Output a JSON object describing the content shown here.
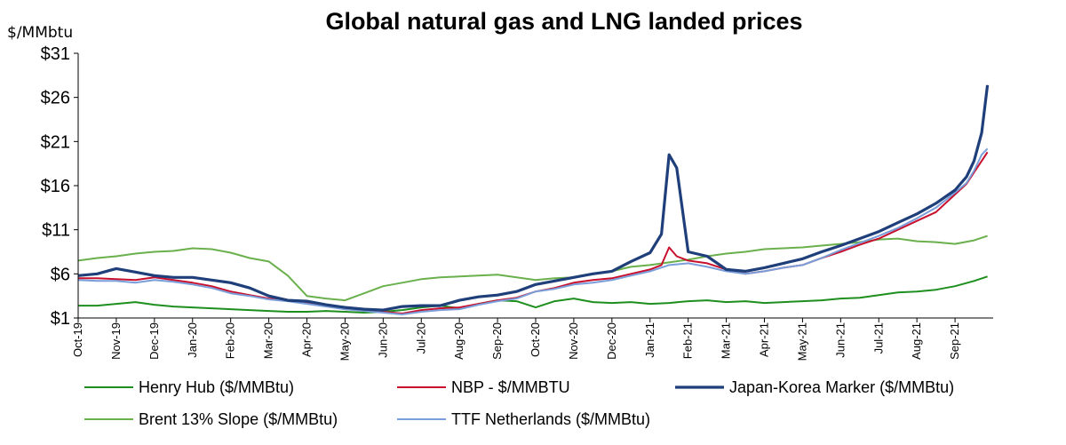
{
  "chart_data": {
    "type": "line",
    "title": "Global natural gas and LNG landed prices",
    "ylabel": "$/MMbtu",
    "xlabel": "",
    "ylim": [
      1,
      31
    ],
    "yticks": [
      "$1",
      "$6",
      "$11",
      "$16",
      "$21",
      "$26",
      "$31"
    ],
    "ytick_values": [
      1,
      6,
      11,
      16,
      21,
      26,
      31
    ],
    "xticks": [
      "Oct-19",
      "Nov-19",
      "Dec-19",
      "Jan-20",
      "Feb-20",
      "Mar-20",
      "Apr-20",
      "May-20",
      "Jun-20",
      "Jul-20",
      "Aug-20",
      "Sep-20",
      "Oct-20",
      "Nov-20",
      "Dec-20",
      "Jan-21",
      "Feb-21",
      "Mar-21",
      "Apr-21",
      "May-21",
      "Jun-21",
      "Jul-21",
      "Aug-21",
      "Sep-21"
    ],
    "grid": false,
    "legend_position": "bottom",
    "series": [
      {
        "name": "Henry Hub ($/MMBtu)",
        "color": "#1e8f1e",
        "x": [
          0,
          0.5,
          1,
          1.5,
          2,
          2.5,
          3,
          3.5,
          4,
          4.5,
          5,
          5.5,
          6,
          6.5,
          7,
          7.5,
          8,
          8.5,
          9,
          9.5,
          10,
          10.5,
          11,
          11.5,
          12,
          12.5,
          13,
          13.5,
          14,
          14.5,
          15,
          15.5,
          16,
          16.5,
          17,
          17.5,
          18,
          18.5,
          19,
          19.5,
          20,
          20.5,
          21,
          21.5,
          22,
          22.5,
          23,
          23.5,
          23.85
        ],
        "values": [
          2.4,
          2.4,
          2.6,
          2.8,
          2.5,
          2.3,
          2.2,
          2.1,
          2.0,
          1.9,
          1.8,
          1.7,
          1.7,
          1.8,
          1.7,
          1.6,
          1.7,
          1.9,
          2.2,
          2.4,
          2.1,
          2.6,
          3.0,
          2.9,
          2.2,
          2.9,
          3.2,
          2.8,
          2.7,
          2.8,
          2.6,
          2.7,
          2.9,
          3.0,
          2.8,
          2.9,
          2.7,
          2.8,
          2.9,
          3.0,
          3.2,
          3.3,
          3.6,
          3.9,
          4.0,
          4.2,
          4.6,
          5.2,
          5.7
        ]
      },
      {
        "name": "NBP - $/MMBTU",
        "color": "#c8102e",
        "x": [
          0,
          0.5,
          1,
          1.5,
          2,
          2.5,
          3,
          3.5,
          4,
          4.5,
          5,
          5.5,
          6,
          6.5,
          7,
          7.5,
          8,
          8.5,
          9,
          9.5,
          10,
          10.5,
          11,
          11.5,
          12,
          12.5,
          13,
          13.5,
          14,
          14.5,
          15,
          15.3,
          15.5,
          15.7,
          16,
          16.5,
          17,
          17.5,
          18,
          18.5,
          19,
          19.5,
          20,
          20.5,
          21,
          21.5,
          22,
          22.5,
          23,
          23.3,
          23.5,
          23.7,
          23.85
        ],
        "values": [
          5.5,
          5.5,
          5.4,
          5.3,
          5.6,
          5.3,
          5.0,
          4.6,
          4.0,
          3.6,
          3.2,
          3.0,
          2.7,
          2.4,
          2.0,
          1.9,
          1.7,
          1.5,
          1.9,
          2.1,
          2.2,
          2.6,
          3.0,
          3.3,
          4.0,
          4.4,
          5.0,
          5.3,
          5.5,
          6.0,
          6.5,
          7.0,
          9.0,
          8.0,
          7.5,
          7.2,
          6.5,
          6.0,
          6.3,
          6.7,
          7.0,
          7.8,
          8.5,
          9.3,
          10.0,
          11.0,
          12.0,
          13.0,
          15.0,
          16.2,
          17.5,
          18.8,
          19.8
        ]
      },
      {
        "name": "Japan-Korea Marker ($/MMBtu)",
        "color": "#1f3f7a",
        "x": [
          0,
          0.5,
          1,
          1.5,
          2,
          2.5,
          3,
          3.5,
          4,
          4.5,
          5,
          5.5,
          6,
          6.5,
          7,
          7.5,
          8,
          8.5,
          9,
          9.5,
          10,
          10.5,
          11,
          11.5,
          12,
          12.5,
          13,
          13.5,
          14,
          14.5,
          15,
          15.3,
          15.5,
          15.7,
          16,
          16.5,
          17,
          17.5,
          18,
          18.5,
          19,
          19.5,
          20,
          20.5,
          21,
          21.5,
          22,
          22.5,
          23,
          23.3,
          23.5,
          23.7,
          23.85
        ],
        "values": [
          5.8,
          6.0,
          6.6,
          6.2,
          5.8,
          5.6,
          5.6,
          5.3,
          5.0,
          4.4,
          3.5,
          3.0,
          2.9,
          2.5,
          2.2,
          2.0,
          1.9,
          2.3,
          2.4,
          2.4,
          3.0,
          3.4,
          3.6,
          4.0,
          4.8,
          5.2,
          5.6,
          6.0,
          6.3,
          7.4,
          8.4,
          10.5,
          19.5,
          18.0,
          8.5,
          8.0,
          6.5,
          6.3,
          6.7,
          7.2,
          7.7,
          8.5,
          9.2,
          10.0,
          10.8,
          11.8,
          12.8,
          14.0,
          15.5,
          17.0,
          18.8,
          22.0,
          27.4
        ]
      },
      {
        "name": "Brent 13% Slope ($/MMBtu)",
        "color": "#6ab04c",
        "x": [
          0,
          0.5,
          1,
          1.5,
          2,
          2.5,
          3,
          3.5,
          4,
          4.5,
          5,
          5.5,
          6,
          6.5,
          7,
          7.5,
          8,
          8.5,
          9,
          9.5,
          10,
          10.5,
          11,
          11.5,
          12,
          12.5,
          13,
          13.5,
          14,
          14.5,
          15,
          15.5,
          16,
          16.5,
          17,
          17.5,
          18,
          18.5,
          19,
          19.5,
          20,
          20.5,
          21,
          21.5,
          22,
          22.5,
          23,
          23.5,
          23.85
        ],
        "values": [
          7.5,
          7.8,
          8.0,
          8.3,
          8.5,
          8.6,
          8.9,
          8.8,
          8.4,
          7.8,
          7.4,
          5.8,
          3.5,
          3.2,
          3.0,
          3.8,
          4.6,
          5.0,
          5.4,
          5.6,
          5.7,
          5.8,
          5.9,
          5.6,
          5.3,
          5.5,
          5.6,
          6.0,
          6.3,
          6.8,
          7.0,
          7.3,
          7.6,
          8.0,
          8.3,
          8.5,
          8.8,
          8.9,
          9.0,
          9.2,
          9.4,
          9.6,
          9.9,
          10.0,
          9.7,
          9.6,
          9.4,
          9.8,
          10.3
        ]
      },
      {
        "name": "TTF Netherlands ($/MMBtu)",
        "color": "#7a9ed9",
        "x": [
          0,
          0.5,
          1,
          1.5,
          2,
          2.5,
          3,
          3.5,
          4,
          4.5,
          5,
          5.5,
          6,
          6.5,
          7,
          7.5,
          8,
          8.5,
          9,
          9.5,
          10,
          10.5,
          11,
          11.5,
          12,
          12.5,
          13,
          13.5,
          14,
          14.5,
          15,
          15.5,
          16,
          16.5,
          17,
          17.5,
          18,
          18.5,
          19,
          19.5,
          20,
          20.5,
          21,
          21.5,
          22,
          22.5,
          23,
          23.3,
          23.5,
          23.7,
          23.85
        ],
        "values": [
          5.3,
          5.2,
          5.2,
          5.0,
          5.3,
          5.1,
          4.8,
          4.4,
          3.8,
          3.5,
          3.1,
          2.9,
          2.6,
          2.3,
          2.0,
          1.8,
          1.6,
          1.4,
          1.7,
          1.9,
          2.0,
          2.5,
          2.9,
          3.2,
          4.0,
          4.3,
          4.8,
          5.0,
          5.3,
          5.8,
          6.3,
          7.0,
          7.2,
          6.8,
          6.3,
          6.0,
          6.3,
          6.7,
          7.0,
          7.8,
          8.7,
          9.5,
          10.3,
          11.2,
          12.3,
          13.5,
          15.2,
          16.3,
          17.7,
          19.5,
          20.2
        ]
      }
    ]
  }
}
